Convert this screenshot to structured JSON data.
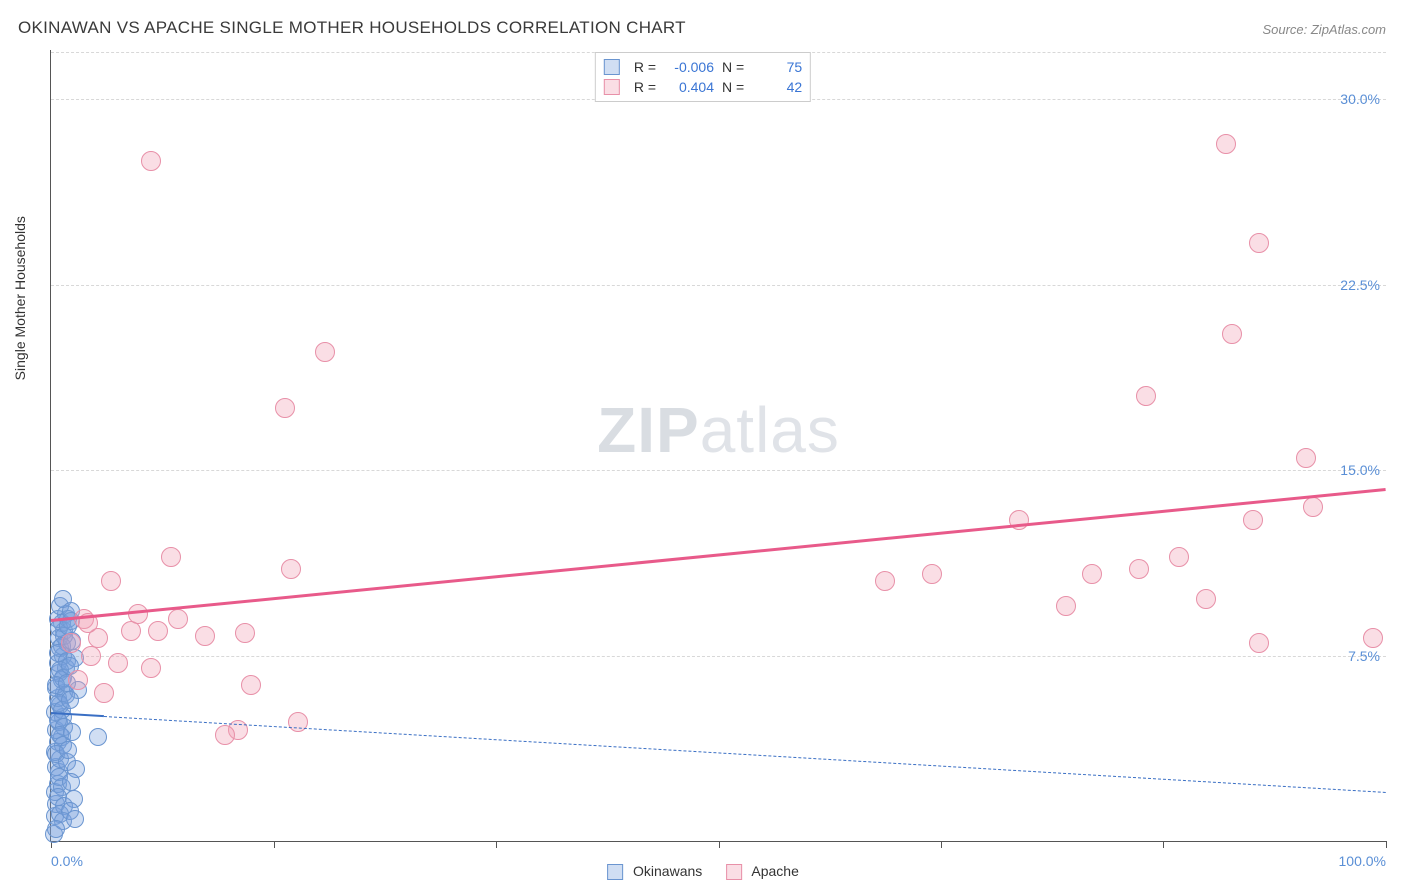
{
  "title": "OKINAWAN VS APACHE SINGLE MOTHER HOUSEHOLDS CORRELATION CHART",
  "source": "Source: ZipAtlas.com",
  "ylabel": "Single Mother Households",
  "watermark_a": "ZIP",
  "watermark_b": "atlas",
  "chart": {
    "type": "scatter",
    "xlim": [
      0,
      100
    ],
    "ylim": [
      0,
      32
    ],
    "xtick_positions": [
      0,
      16.67,
      33.33,
      50,
      66.67,
      83.33,
      100
    ],
    "xtick_labels": [
      "0.0%",
      "",
      "",
      "",
      "",
      "",
      "100.0%"
    ],
    "ytick_positions": [
      7.5,
      15.0,
      22.5,
      30.0
    ],
    "ytick_labels": [
      "7.5%",
      "15.0%",
      "22.5%",
      "30.0%"
    ],
    "grid_color": "#d8d8d8",
    "background_color": "#ffffff",
    "series": [
      {
        "name": "Okinawans",
        "label": "Okinawans",
        "marker_fill": "rgba(120,160,220,0.35)",
        "marker_stroke": "#6a95d0",
        "marker_radius": 9,
        "trend_color": "#3a6fc4",
        "trend_width": 2.5,
        "trend_dash": "solid_then_dash",
        "trend_y_at_x0": 5.2,
        "trend_y_at_x100": 2.0,
        "R": "-0.006",
        "N": "75",
        "points": [
          [
            0.2,
            0.3
          ],
          [
            0.3,
            1.0
          ],
          [
            0.4,
            1.5
          ],
          [
            0.3,
            2.0
          ],
          [
            0.5,
            2.3
          ],
          [
            0.6,
            2.8
          ],
          [
            0.4,
            3.0
          ],
          [
            0.7,
            3.3
          ],
          [
            0.3,
            3.6
          ],
          [
            0.5,
            4.0
          ],
          [
            0.8,
            4.2
          ],
          [
            0.4,
            4.5
          ],
          [
            0.6,
            4.8
          ],
          [
            0.9,
            5.0
          ],
          [
            0.3,
            5.2
          ],
          [
            0.7,
            5.5
          ],
          [
            0.5,
            5.8
          ],
          [
            1.0,
            6.0
          ],
          [
            0.4,
            6.2
          ],
          [
            0.8,
            6.5
          ],
          [
            0.6,
            6.8
          ],
          [
            1.1,
            7.0
          ],
          [
            0.5,
            7.2
          ],
          [
            0.9,
            7.5
          ],
          [
            0.7,
            7.8
          ],
          [
            1.2,
            8.0
          ],
          [
            0.6,
            8.2
          ],
          [
            1.0,
            8.5
          ],
          [
            0.8,
            8.8
          ],
          [
            0.5,
            9.0
          ],
          [
            1.1,
            9.2
          ],
          [
            0.7,
            9.5
          ],
          [
            0.9,
            9.8
          ],
          [
            1.3,
            9.0
          ],
          [
            0.6,
            8.6
          ],
          [
            1.0,
            8.3
          ],
          [
            0.8,
            7.9
          ],
          [
            0.5,
            7.6
          ],
          [
            1.2,
            7.3
          ],
          [
            0.7,
            6.9
          ],
          [
            0.9,
            6.6
          ],
          [
            0.4,
            6.3
          ],
          [
            1.1,
            5.9
          ],
          [
            0.6,
            5.6
          ],
          [
            0.8,
            5.3
          ],
          [
            0.5,
            4.9
          ],
          [
            1.0,
            4.6
          ],
          [
            0.7,
            4.3
          ],
          [
            0.9,
            3.9
          ],
          [
            0.4,
            3.5
          ],
          [
            1.2,
            3.2
          ],
          [
            0.6,
            2.6
          ],
          [
            0.8,
            2.2
          ],
          [
            0.5,
            1.8
          ],
          [
            1.0,
            1.4
          ],
          [
            0.7,
            1.1
          ],
          [
            0.9,
            0.8
          ],
          [
            0.4,
            0.5
          ],
          [
            3.5,
            4.2
          ],
          [
            1.5,
            8.9
          ],
          [
            1.8,
            7.4
          ],
          [
            2.0,
            6.1
          ],
          [
            1.4,
            5.7
          ],
          [
            1.6,
            4.4
          ],
          [
            1.3,
            3.7
          ],
          [
            1.9,
            2.9
          ],
          [
            1.5,
            2.4
          ],
          [
            1.7,
            1.7
          ],
          [
            1.4,
            1.2
          ],
          [
            1.8,
            0.9
          ],
          [
            1.5,
            9.3
          ],
          [
            1.3,
            8.7
          ],
          [
            1.6,
            8.1
          ],
          [
            1.4,
            7.1
          ],
          [
            1.2,
            6.4
          ]
        ]
      },
      {
        "name": "Apache",
        "label": "Apache",
        "marker_fill": "rgba(240,160,180,0.35)",
        "marker_stroke": "#e890a8",
        "marker_radius": 10,
        "trend_color": "#e85a8a",
        "trend_width": 3,
        "trend_dash": "solid",
        "trend_y_at_x0": 9.0,
        "trend_y_at_x100": 14.3,
        "R": "0.404",
        "N": "42",
        "points": [
          [
            7.5,
            27.5
          ],
          [
            88.0,
            28.2
          ],
          [
            90.5,
            24.2
          ],
          [
            20.5,
            19.8
          ],
          [
            17.5,
            17.5
          ],
          [
            88.5,
            20.5
          ],
          [
            82.0,
            18.0
          ],
          [
            94.0,
            15.5
          ],
          [
            78.0,
            10.8
          ],
          [
            72.5,
            13.0
          ],
          [
            81.5,
            11.0
          ],
          [
            76.0,
            9.5
          ],
          [
            86.5,
            9.8
          ],
          [
            90.0,
            13.0
          ],
          [
            84.5,
            11.5
          ],
          [
            90.5,
            8.0
          ],
          [
            99.0,
            8.2
          ],
          [
            94.5,
            13.5
          ],
          [
            62.5,
            10.5
          ],
          [
            66.0,
            10.8
          ],
          [
            18.0,
            11.0
          ],
          [
            9.0,
            11.5
          ],
          [
            4.5,
            10.5
          ],
          [
            2.5,
            9.0
          ],
          [
            3.5,
            8.2
          ],
          [
            6.0,
            8.5
          ],
          [
            8.0,
            8.5
          ],
          [
            11.5,
            8.3
          ],
          [
            14.5,
            8.4
          ],
          [
            3.0,
            7.5
          ],
          [
            5.0,
            7.2
          ],
          [
            7.5,
            7.0
          ],
          [
            2.0,
            6.5
          ],
          [
            4.0,
            6.0
          ],
          [
            15.0,
            6.3
          ],
          [
            18.5,
            4.8
          ],
          [
            14.0,
            4.5
          ],
          [
            13.0,
            4.3
          ],
          [
            9.5,
            9.0
          ],
          [
            6.5,
            9.2
          ],
          [
            1.5,
            8.0
          ],
          [
            2.8,
            8.8
          ]
        ]
      }
    ]
  },
  "legend": {
    "r_label": "R =",
    "n_label": "N ="
  }
}
